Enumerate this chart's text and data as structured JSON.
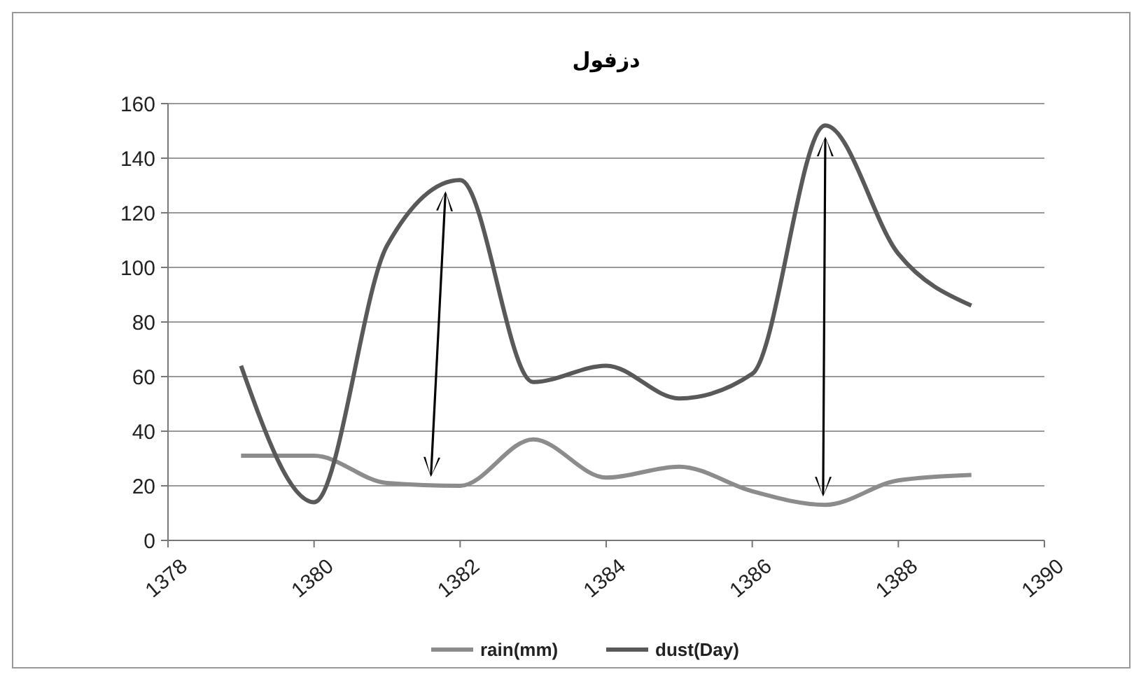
{
  "chart_data": {
    "type": "line",
    "title": "دزفول",
    "x": [
      1379,
      1380,
      1381,
      1382,
      1383,
      1384,
      1385,
      1386,
      1387,
      1388,
      1389
    ],
    "series": [
      {
        "name": "rain(mm)",
        "color": "#8c8c8c",
        "values": [
          31,
          31,
          21,
          20,
          37,
          23,
          27,
          18,
          13,
          22,
          24
        ]
      },
      {
        "name": "dust(Day)",
        "color": "#595959",
        "values": [
          64,
          14,
          108,
          132,
          58,
          64,
          52,
          61,
          152,
          105,
          86
        ]
      }
    ],
    "xlim": [
      1378,
      1390
    ],
    "xticks": [
      1378,
      1380,
      1382,
      1384,
      1386,
      1388,
      1390
    ],
    "ylim": [
      0,
      160
    ],
    "yticks": [
      0,
      20,
      40,
      60,
      80,
      100,
      120,
      140,
      160
    ],
    "grid": "y",
    "legend": "bottom",
    "marker": "none",
    "line_style": "solid"
  }
}
